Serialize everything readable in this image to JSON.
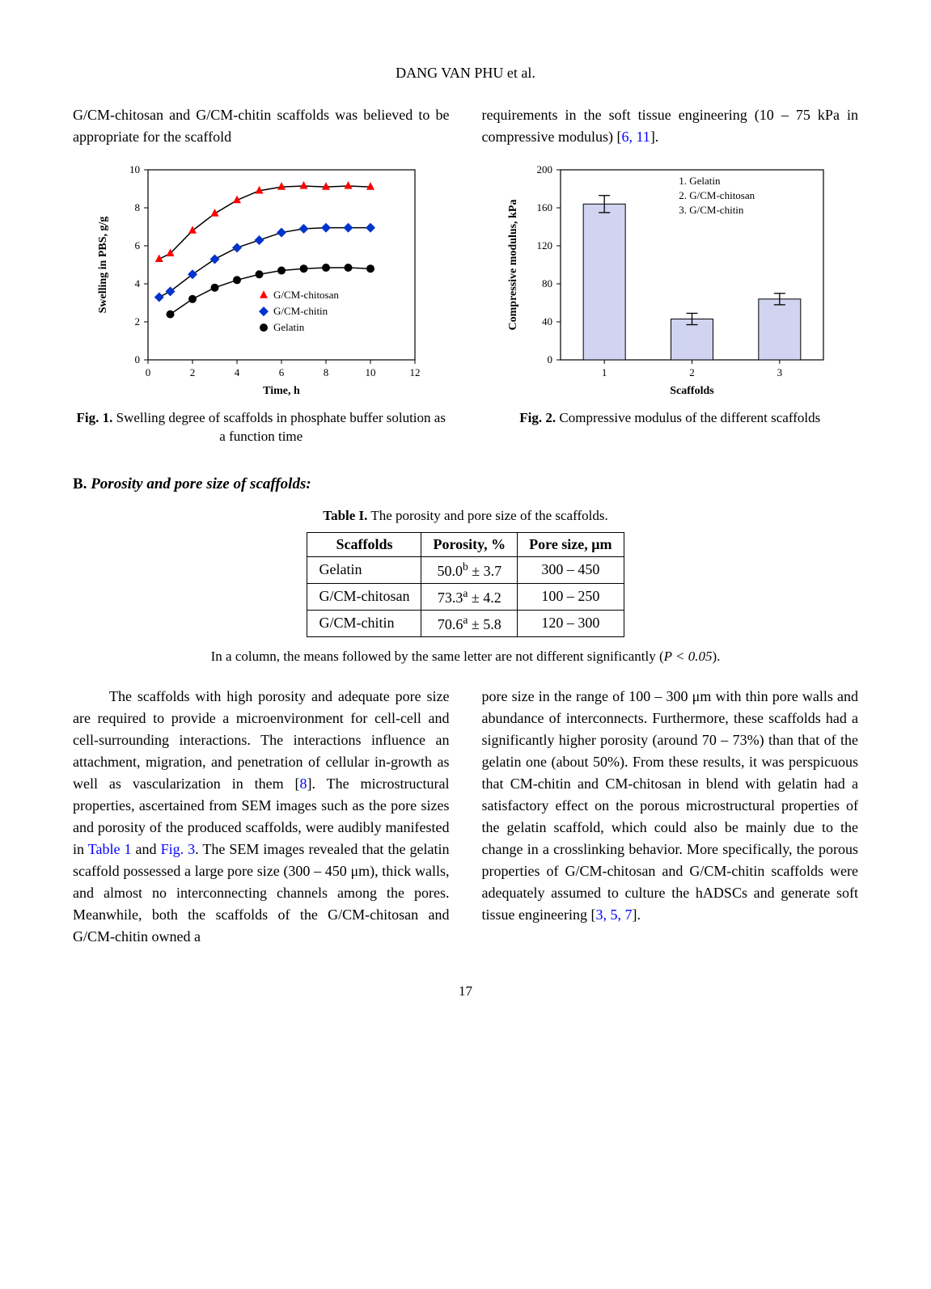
{
  "author_header": "DANG VAN PHU et al.",
  "intro_left": "G/CM-chitosan and G/CM-chitin scaffolds was believed to be appropriate for the scaffold",
  "intro_right_a": "requirements in the soft tissue engineering (10 – 75 kPa in compressive modulus) [",
  "intro_right_refs": "6, 11",
  "intro_right_b": "].",
  "fig1": {
    "type": "scatter+line",
    "xlabel": "Time, h",
    "ylabel": "Swelling in PBS, g/g",
    "xlim": [
      0,
      12
    ],
    "ylim": [
      0,
      10
    ],
    "xticks": [
      0,
      2,
      4,
      6,
      8,
      10,
      12
    ],
    "yticks": [
      0,
      2,
      4,
      6,
      8,
      10
    ],
    "label_fontsize": 14,
    "tick_fontsize": 13,
    "background": "#ffffff",
    "axis_color": "#000000",
    "series": [
      {
        "name": "G/CM-chitosan",
        "marker": "triangle",
        "color": "#ff0000",
        "x": [
          0.5,
          1,
          2,
          3,
          4,
          5,
          6,
          7,
          8,
          9,
          10
        ],
        "y": [
          5.3,
          5.6,
          6.8,
          7.7,
          8.4,
          8.9,
          9.1,
          9.15,
          9.1,
          9.15,
          9.1
        ]
      },
      {
        "name": "G/CM-chitin",
        "marker": "diamond",
        "color": "#0033cc",
        "x": [
          0.5,
          1,
          2,
          3,
          4,
          5,
          6,
          7,
          8,
          9,
          10
        ],
        "y": [
          3.3,
          3.6,
          4.5,
          5.3,
          5.9,
          6.3,
          6.7,
          6.9,
          6.95,
          6.95,
          6.95
        ]
      },
      {
        "name": "Gelatin",
        "marker": "circle",
        "color": "#000000",
        "x": [
          1,
          2,
          3,
          4,
          5,
          6,
          7,
          8,
          9,
          10
        ],
        "y": [
          2.4,
          3.2,
          3.8,
          4.2,
          4.5,
          4.7,
          4.8,
          4.85,
          4.85,
          4.8
        ]
      }
    ],
    "legend_entries": [
      {
        "label": "G/CM-chitosan",
        "marker": "triangle",
        "color": "#ff0000"
      },
      {
        "label": "G/CM-chitin",
        "marker": "diamond",
        "color": "#0033cc"
      },
      {
        "label": "Gelatin",
        "marker": "circle",
        "color": "#000000"
      }
    ],
    "caption_bold": "Fig. 1.",
    "caption_rest": " Swelling degree of scaffolds in phosphate buffer solution as a function time"
  },
  "fig2": {
    "type": "bar",
    "xlabel": "Scaffolds",
    "ylabel": "Compressive modulus, kPa",
    "ylim": [
      0,
      200
    ],
    "yticks": [
      0,
      40,
      80,
      120,
      160,
      200
    ],
    "categories": [
      "1",
      "2",
      "3"
    ],
    "values": [
      164,
      43,
      64
    ],
    "errors": [
      9,
      6,
      6
    ],
    "bar_color": "#d0d4f0",
    "bar_border": "#000000",
    "bar_width": 0.48,
    "background": "#ffffff",
    "legend_lines": [
      "1. Gelatin",
      "2. G/CM-chitosan",
      "3. G/CM-chitin"
    ],
    "caption_bold": "Fig. 2.",
    "caption_rest": " Compressive modulus of the different scaffolds"
  },
  "section_letter": "B.",
  "section_title": " Porosity and pore size of scaffolds:",
  "table": {
    "title_bold": "Table I.",
    "title_rest": " The porosity and pore size of the scaffolds.",
    "headers": [
      "Scaffolds",
      "Porosity, %",
      "Pore size, μm"
    ],
    "rows": [
      {
        "scaffold": "Gelatin",
        "porosity_val": "50.0",
        "porosity_sup": "b",
        "porosity_err": " ± 3.7",
        "poresize": "300 – 450"
      },
      {
        "scaffold": "G/CM-chitosan",
        "porosity_val": "73.3",
        "porosity_sup": "a",
        "porosity_err": " ± 4.2",
        "poresize": "100 – 250"
      },
      {
        "scaffold": "G/CM-chitin",
        "porosity_val": "70.6",
        "porosity_sup": "a",
        "porosity_err": " ± 5.8",
        "poresize": "120 – 300"
      }
    ],
    "note_a": "In a column, the means followed by the same letter are not different significantly (",
    "note_italic": "P < 0.05",
    "note_b": ")."
  },
  "body_left_a": "The scaffolds with high porosity and adequate pore size are required to provide a microenvironment for cell-cell and cell-surrounding interactions. The interactions influence an attachment, migration, and penetration of cellular in-growth as well as vascularization in them [",
  "body_left_ref1": "8",
  "body_left_b": "]. The microstructural properties, ascertained from SEM images such as the pore sizes and porosity of the produced scaffolds, were audibly manifested in ",
  "body_left_tablelink": "Table 1",
  "body_left_c": " and ",
  "body_left_figlink": "Fig. 3",
  "body_left_d": ". The SEM images revealed that the gelatin scaffold possessed a large pore size (300 – 450 μm), thick walls, and almost no interconnecting channels among the pores. Meanwhile, both the scaffolds of the G/CM-chitosan and G/CM-chitin owned a",
  "body_right_a": "pore size in the range of 100 – 300 μm with thin pore walls and abundance of interconnects. Furthermore, these scaffolds had a significantly higher porosity (around 70 – 73%) than that of the gelatin one (about 50%). From these results, it was perspicuous that CM-chitin and CM-chitosan in blend with gelatin had a satisfactory effect on the porous microstructural properties of the gelatin scaffold, which could also be mainly due to the change in a crosslinking behavior. More specifically, the porous properties of G/CM-chitosan and G/CM-chitin scaffolds were adequately assumed to culture the hADSCs and generate soft tissue engineering [",
  "body_right_ref": "3, 5, 7",
  "body_right_b": "].",
  "page_number": "17"
}
